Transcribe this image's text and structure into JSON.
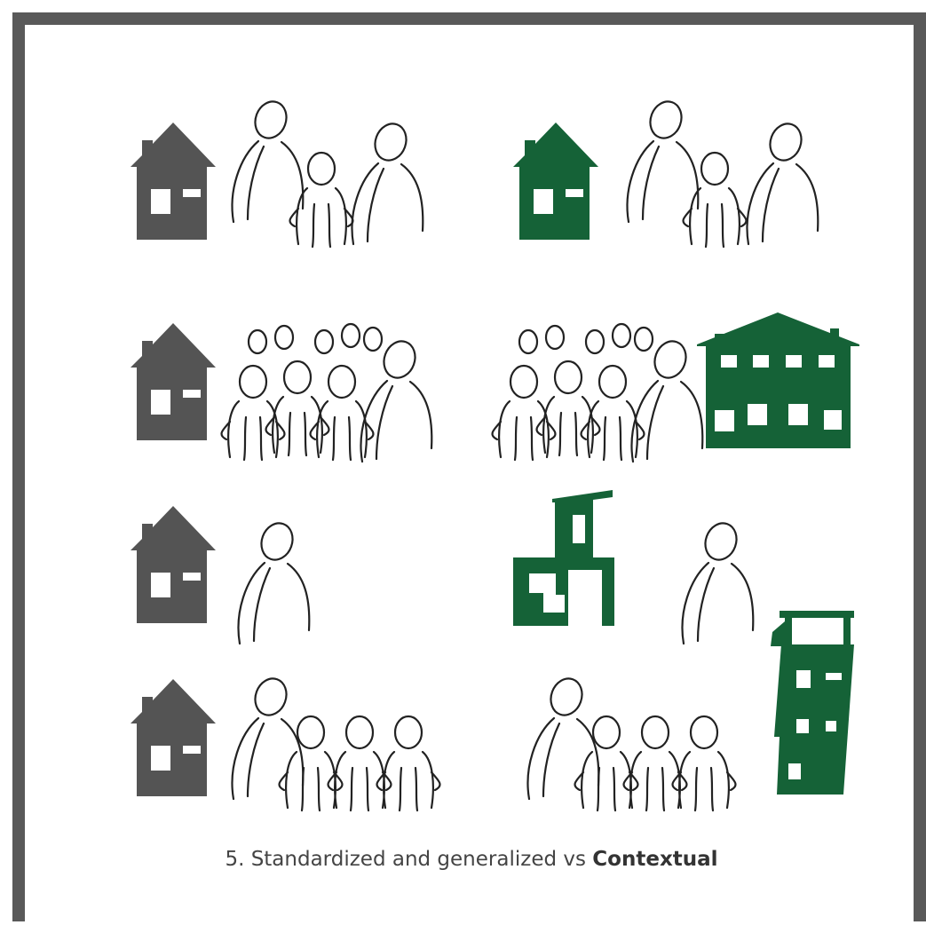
{
  "caption": {
    "text": "5. Standardized and generalized vs",
    "emphasis": "Contextual"
  }
}
